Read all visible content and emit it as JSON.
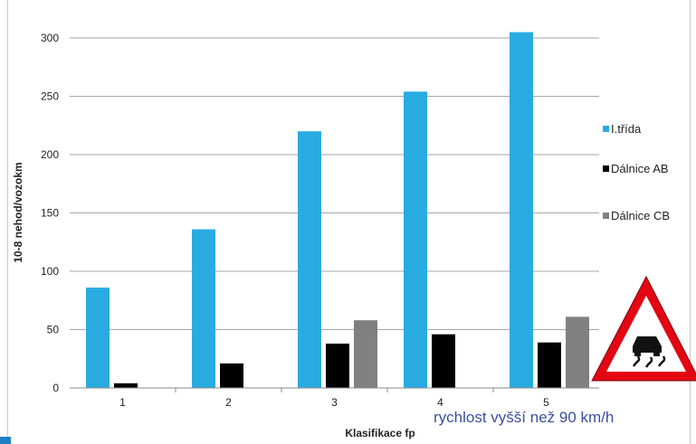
{
  "chart_data": {
    "type": "bar",
    "categories": [
      "1",
      "2",
      "3",
      "4",
      "5"
    ],
    "series": [
      {
        "name": "I.třída",
        "values": [
          86,
          136,
          220,
          254,
          305
        ],
        "color": "#29abe2"
      },
      {
        "name": "Dálnice AB",
        "values": [
          4,
          21,
          38,
          46,
          39
        ],
        "color": "#000000"
      },
      {
        "name": "Dálnice CB",
        "values": [
          0,
          0,
          58,
          0,
          61
        ],
        "color": "#808080"
      }
    ],
    "xlabel": "Klasifikace fp",
    "ylabel": "10-8 nehod/vozokm",
    "ylim": [
      0,
      300
    ],
    "yticks": [
      0,
      50,
      100,
      150,
      200,
      250,
      300
    ],
    "grid": true,
    "legend_position": "right",
    "annotation": "rychlost vyšší než 90 km/h"
  },
  "sign": {
    "icon": "slippery-road-warning-sign-icon",
    "border_color": "#e30613",
    "fill_color": "#ffffff"
  }
}
